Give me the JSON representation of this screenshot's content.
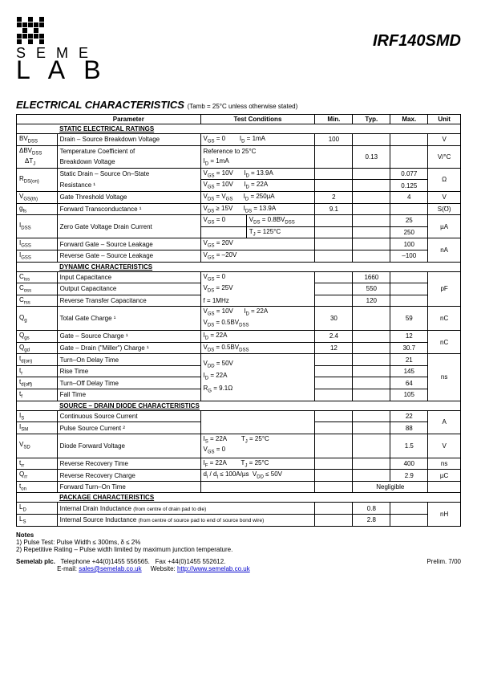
{
  "logo": {
    "line1": "S E M E",
    "line2": "L A B"
  },
  "part_number": "IRF140SMD",
  "title": "ELECTRICAL CHARACTERISTICS",
  "subtitle": "(Tamb = 25°C unless otherwise stated)",
  "headers": {
    "param": "Parameter",
    "cond": "Test Conditions",
    "min": "Min.",
    "typ": "Typ.",
    "max": "Max.",
    "unit": "Unit"
  },
  "sections": {
    "static": "STATIC ELECTRICAL RATINGS",
    "dynamic": "DYNAMIC CHARACTERISTICS",
    "diode": "SOURCE – DRAIN DIODE CHARACTERISTICS",
    "package": "PACKAGE CHARACTERISTICS"
  },
  "rows": {
    "bvdss": {
      "sym": "BV",
      "sub": "DSS",
      "param": "Drain – Source Breakdown Voltage",
      "cond": "V<sub>GS</sub> = 0&nbsp;&nbsp;&nbsp;&nbsp;&nbsp;&nbsp;&nbsp;&nbsp;I<sub>D</sub> = 1mA",
      "min": "100",
      "typ": "",
      "max": "",
      "unit": "V"
    },
    "dbvdss1": {
      "sym": "ΔBV",
      "sub": "DSS",
      "param": "Temperature Coefficient of",
      "cond": "Reference to 25°C"
    },
    "dbvdss2": {
      "sym": "ΔT",
      "sub": "J",
      "param": "Breakdown Voltage",
      "cond": "I<sub>D</sub> = 1mA",
      "typ": "0.13",
      "unit": "V/°C"
    },
    "rdson1": {
      "sym": "R",
      "sub": "DS(on)",
      "param": "Static Drain – Source On–State",
      "cond": "V<sub>GS</sub> = 10V&nbsp;&nbsp;&nbsp;&nbsp;&nbsp;&nbsp;I<sub>D</sub> = 13.9A",
      "max": "0.077"
    },
    "rdson2": {
      "param": "Resistance ¹",
      "cond": "V<sub>GS</sub> = 10V&nbsp;&nbsp;&nbsp;&nbsp;&nbsp;&nbsp;I<sub>D</sub> = 22A",
      "max": "0.125",
      "unit": "Ω"
    },
    "vgsth": {
      "sym": "V",
      "sub": "GS(th)",
      "param": "Gate Threshold Voltage",
      "cond": "V<sub>DS</sub> = V<sub>GS</sub>&nbsp;&nbsp;&nbsp;&nbsp;&nbsp;&nbsp;I<sub>D</sub> = 250µA",
      "min": "2",
      "max": "4",
      "unit": "V"
    },
    "gfs": {
      "sym": "g",
      "sub": "fs",
      "param": "Forward Transconductance ¹",
      "cond": "V<sub>DS</sub> ≥ 15V&nbsp;&nbsp;&nbsp;&nbsp;&nbsp;&nbsp;I<sub>DS</sub> = 13.9A",
      "min": "9.1",
      "unit": "S(℧)"
    },
    "idss1": {
      "sym": "I",
      "sub": "DSS",
      "param": "Zero Gate Voltage Drain Current",
      "cond1": "V<sub>GS</sub> = 0",
      "cond2": "V<sub>DS</sub> = 0.8BV<sub>DSS</sub>",
      "max": "25"
    },
    "idss2": {
      "cond": "T<sub>J</sub> = 125°C",
      "max": "250",
      "unit": "µA"
    },
    "igss1": {
      "sym": "I",
      "sub": "GSS",
      "param": "Forward Gate – Source Leakage",
      "cond": "V<sub>GS</sub> = 20V",
      "max": "100"
    },
    "igss2": {
      "sym": "I",
      "sub": "GSS",
      "param": "Reverse Gate – Source Leakage",
      "cond": "V<sub>GS</sub> = –20V",
      "max": "–100",
      "unit": "nA"
    },
    "ciss": {
      "sym": "C",
      "sub": "iss",
      "param": "Input Capacitance",
      "cond": "V<sub>GS</sub> = 0",
      "typ": "1660"
    },
    "coss": {
      "sym": "C",
      "sub": "oss",
      "param": "Output Capacitance",
      "cond": "V<sub>DS</sub> = 25V",
      "typ": "550",
      "unit": "pF"
    },
    "crss": {
      "sym": "C",
      "sub": "rss",
      "param": "Reverse Transfer Capacitance",
      "cond": "f = 1MHz",
      "typ": "120"
    },
    "qg": {
      "sym": "Q",
      "sub": "g",
      "param": "Total Gate Charge ¹",
      "cond1": "V<sub>GS</sub> = 10V&nbsp;&nbsp;&nbsp;&nbsp;&nbsp;&nbsp;I<sub>D</sub> = 22A",
      "cond2": "V<sub>DS</sub> = 0.5BV<sub>DSS</sub>",
      "min": "30",
      "max": "59",
      "unit": "nC"
    },
    "qgs": {
      "sym": "Q",
      "sub": "gs",
      "param": "Gate –  Source Charge ¹",
      "cond": "I<sub>D</sub> = 22A",
      "min": "2.4",
      "max": "12"
    },
    "qgd": {
      "sym": "Q",
      "sub": "gd",
      "param": "Gate –  Drain (\"Miller\") Charge ¹",
      "cond": "V<sub>DS</sub> = 0.5BV<sub>DSS</sub>",
      "min": "12",
      "max": "30.7",
      "unit": "nC"
    },
    "tdon": {
      "sym": "t",
      "sub": "d(on)",
      "param": "Turn–On Delay Time",
      "max": "21"
    },
    "tr": {
      "sym": "t",
      "sub": "r",
      "param": "Rise Time",
      "cond1": "V<sub>DD</sub> = 50V",
      "max": "145"
    },
    "tdoff": {
      "sym": "t",
      "sub": "d(off)",
      "param": "Turn–Off Delay Time",
      "cond2": "I<sub>D</sub> = 22A",
      "max": "64",
      "unit": "ns"
    },
    "tf": {
      "sym": "t",
      "sub": "f",
      "param": "Fall Time",
      "cond3": "R<sub>G</sub> = 9.1Ω",
      "max": "105"
    },
    "is": {
      "sym": "I",
      "sub": "S",
      "param": "Continuous Source Current",
      "max": "22"
    },
    "ism": {
      "sym": "I",
      "sub": "SM",
      "param": "Pulse Source Current ²",
      "max": "88",
      "unit": "A"
    },
    "vsd": {
      "sym": "V",
      "sub": "SD",
      "param": "Diode Forward Voltage",
      "cond1": "I<sub>S</sub> = 22A&nbsp;&nbsp;&nbsp;&nbsp;&nbsp;&nbsp;&nbsp;&nbsp;T<sub>J</sub> = 25°C",
      "cond2": "V<sub>GS</sub> = 0",
      "max": "1.5",
      "unit": "V"
    },
    "trr": {
      "sym": "t",
      "sub": "rr",
      "param": "Reverse Recovery Time",
      "cond": "I<sub>F</sub> = 22A&nbsp;&nbsp;&nbsp;&nbsp;&nbsp;&nbsp;&nbsp;&nbsp;T<sub>J</sub> = 25°C",
      "max": "400",
      "unit": "ns"
    },
    "qrr": {
      "sym": "Q",
      "sub": "rr",
      "param": "Reverse Recovery Charge",
      "cond": "d<sub>i</sub> / d<sub>t</sub> ≤ 100A/µs&nbsp;&nbsp;V<sub>DD</sub> ≤ 50V",
      "max": "2.9",
      "unit": "µC"
    },
    "ton": {
      "sym": "t",
      "sub": "on",
      "param": "Forward Turn–On Time",
      "typ": "Negligible"
    },
    "ld": {
      "sym": "L",
      "sub": "D",
      "param": "Internal Drain Inductance",
      "note": "(from centre of drain pad to die)",
      "typ": "0.8"
    },
    "ls": {
      "sym": "L",
      "sub": "S",
      "param": "Internal Source Inductance",
      "note": "(from centre of source pad to end of source bond wire)",
      "typ": "2.8",
      "unit": "nH"
    }
  },
  "notes_title": "Notes",
  "notes": {
    "n1": "1)  Pulse Test: Pulse Width ≤ 300ms, δ ≤ 2%",
    "n2": "2)  Repetitive Rating – Pulse width limited by maximum junction temperature."
  },
  "footer": {
    "company": "Semelab plc.",
    "tel": "Telephone +44(0)1455 556565.",
    "fax": "Fax +44(0)1455 552612.",
    "email_label": "E-mail:",
    "email": "sales@semelab.co.uk",
    "web_label": "Website:",
    "web": "http://www.semelab.co.uk",
    "rev": "Prelim. 7/00"
  }
}
